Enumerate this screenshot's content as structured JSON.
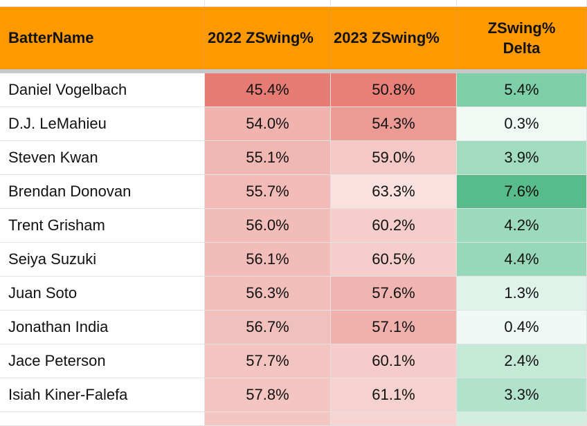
{
  "header": {
    "col0": "BatterName",
    "col1": "2022 ZSwing%",
    "col2": "2023 ZSwing%",
    "col3": "ZSwing%\nDelta"
  },
  "rows": [
    {
      "name": "Daniel Vogelbach",
      "z2022": "45.4%",
      "z2023": "50.8%",
      "delta": "5.4%",
      "bg1": "#e67c73",
      "bg2": "#e88078",
      "bg3": "#7ccfa9"
    },
    {
      "name": "D.J. LeMahieu",
      "z2022": "54.0%",
      "z2023": "54.3%",
      "delta": "0.3%",
      "bg1": "#f0b3ae",
      "bg2": "#ec9a94",
      "bg3": "#f1f9f5"
    },
    {
      "name": "Steven Kwan",
      "z2022": "55.1%",
      "z2023": "59.0%",
      "delta": "3.9%",
      "bg1": "#f1b8b3",
      "bg2": "#f4c8c4",
      "bg3": "#a1dcc1"
    },
    {
      "name": "Brendan Donovan",
      "z2022": "55.7%",
      "z2023": "63.3%",
      "delta": "7.6%",
      "bg1": "#f2bbb7",
      "bg2": "#fae1df",
      "bg3": "#57bb8a"
    },
    {
      "name": "Trent Grisham",
      "z2022": "56.0%",
      "z2023": "60.2%",
      "delta": "4.2%",
      "bg1": "#f2bcb8",
      "bg2": "#f5cdca",
      "bg3": "#9cdabd"
    },
    {
      "name": "Seiya Suzuki",
      "z2022": "56.1%",
      "z2023": "60.5%",
      "delta": "4.4%",
      "bg1": "#f2bdb9",
      "bg2": "#f5cecb",
      "bg3": "#98d8ba"
    },
    {
      "name": "Juan Soto",
      "z2022": "56.3%",
      "z2023": "57.6%",
      "delta": "1.3%",
      "bg1": "#f2beba",
      "bg2": "#f1b5b1",
      "bg3": "#e0f3ea"
    },
    {
      "name": "Jonathan India",
      "z2022": "56.7%",
      "z2023": "57.1%",
      "delta": "0.4%",
      "bg1": "#f2c0bc",
      "bg2": "#f0b0ab",
      "bg3": "#eff8f4"
    },
    {
      "name": "Jace Peterson",
      "z2022": "57.7%",
      "z2023": "60.1%",
      "delta": "2.4%",
      "bg1": "#f4c4c0",
      "bg2": "#f5ccc9",
      "bg3": "#c4e9d7"
    },
    {
      "name": "Isiah Kiner-Falefa",
      "z2022": "57.8%",
      "z2023": "61.1%",
      "delta": "3.3%",
      "bg1": "#f4c5c1",
      "bg2": "#f6d2cf",
      "bg3": "#b1e2cb"
    }
  ]
}
